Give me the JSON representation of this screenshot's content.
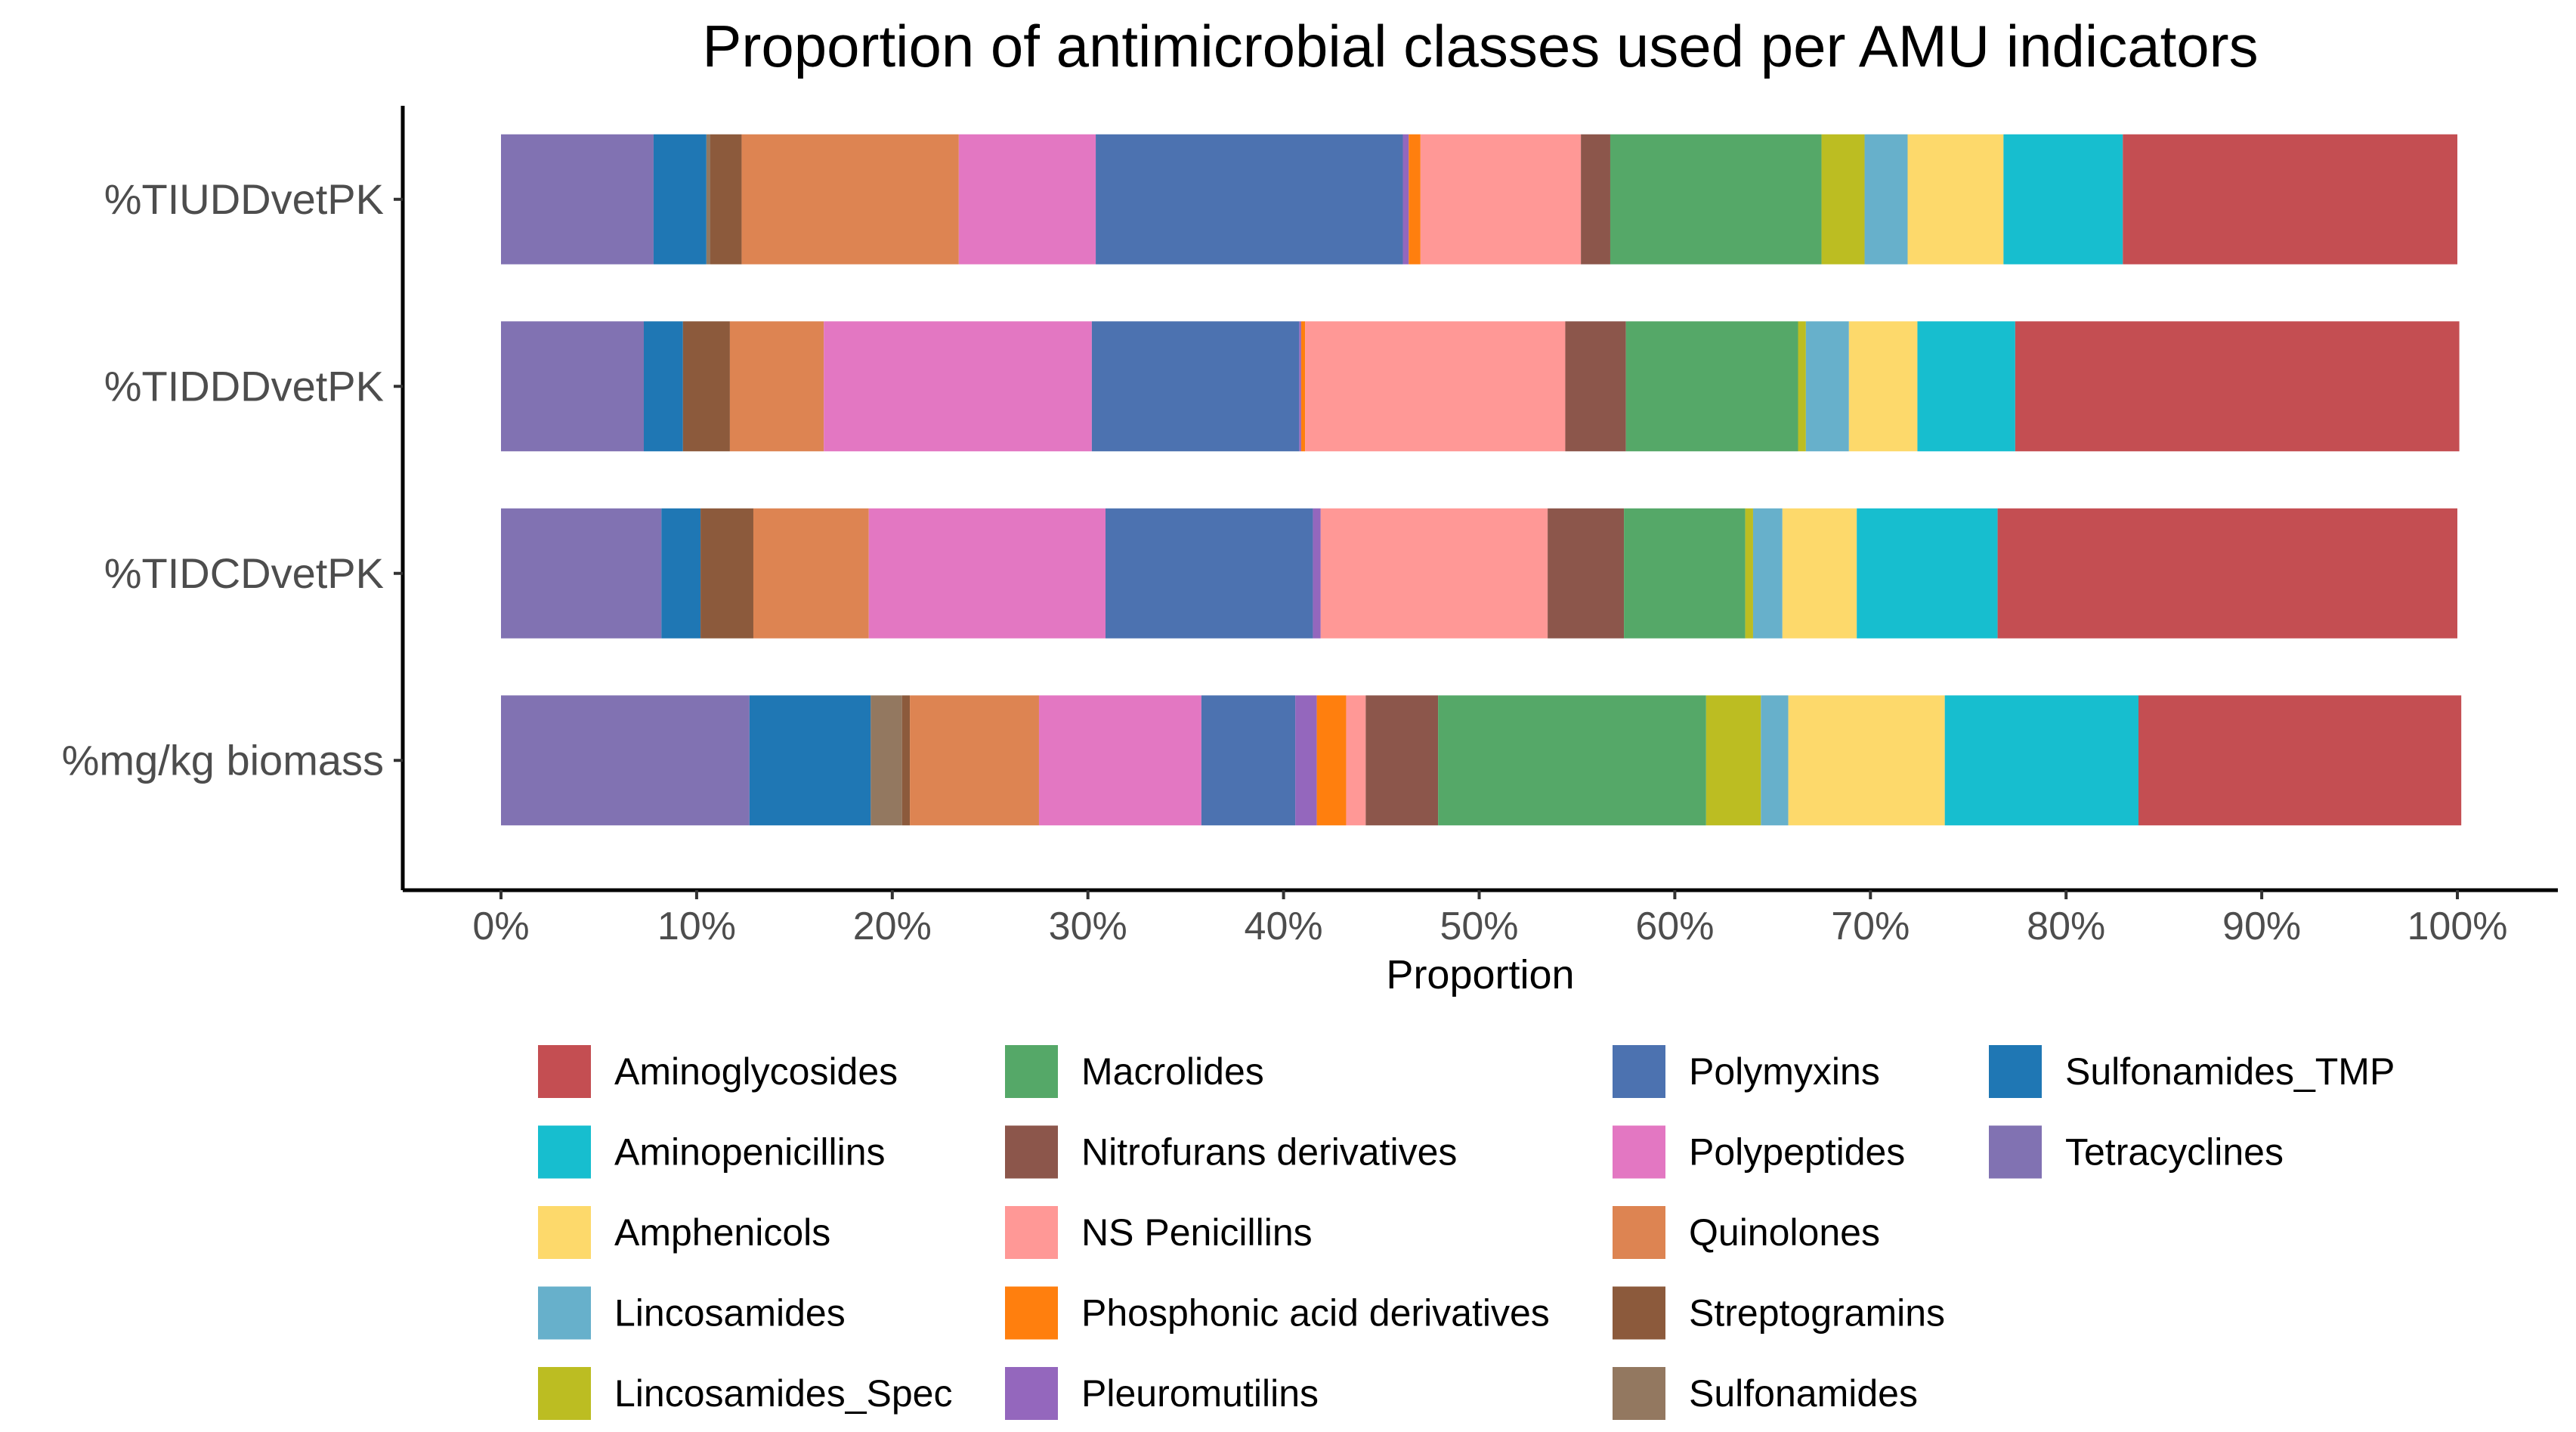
{
  "chart_data": {
    "type": "bar",
    "orientation": "horizontal",
    "stacked": true,
    "title": "Proportion of antimicrobial classes used per AMU indicators",
    "xlabel": "Proportion",
    "ylabel": "",
    "xlim": [
      0,
      1
    ],
    "x_ticks": [
      "0%",
      "10%",
      "20%",
      "30%",
      "40%",
      "50%",
      "60%",
      "70%",
      "80%",
      "90%",
      "100%"
    ],
    "grid": false,
    "legend_position": "bottom",
    "categories": [
      "%TIUDDvetPK",
      "%TIDDDvetPK",
      "%TIDCDvetPK",
      "%mg/kg biomass"
    ],
    "stack_order": [
      "Tetracyclines",
      "Sulfonamides_TMP",
      "Sulfonamides",
      "Streptogramins",
      "Quinolones",
      "Polypeptides",
      "Polymyxins",
      "Pleuromutilins",
      "Phosphonic acid derivatives",
      "NS Penicillins",
      "Nitrofurans derivatives",
      "Macrolides",
      "Lincosamides_Spec",
      "Lincosamides",
      "Amphenicols",
      "Aminopenicillins",
      "Aminoglycosides"
    ],
    "series": [
      {
        "name": "Aminoglycosides",
        "color": "#C44E52",
        "values": [
          0.171,
          0.227,
          0.235,
          0.165
        ]
      },
      {
        "name": "Aminopenicillins",
        "color": "#17BECF",
        "values": [
          0.061,
          0.05,
          0.072,
          0.099
        ]
      },
      {
        "name": "Amphenicols",
        "color": "#FDD96B",
        "values": [
          0.049,
          0.035,
          0.038,
          0.08
        ]
      },
      {
        "name": "Lincosamides",
        "color": "#67B0CB",
        "values": [
          0.022,
          0.022,
          0.015,
          0.014
        ]
      },
      {
        "name": "Lincosamides_Spec",
        "color": "#BCBD22",
        "values": [
          0.022,
          0.004,
          0.004,
          0.028
        ]
      },
      {
        "name": "Macrolides",
        "color": "#55A868",
        "values": [
          0.108,
          0.088,
          0.062,
          0.137
        ]
      },
      {
        "name": "Nitrofurans derivatives",
        "color": "#8C564B",
        "values": [
          0.015,
          0.031,
          0.039,
          0.037
        ]
      },
      {
        "name": "NS Penicillins",
        "color": "#FF9896",
        "values": [
          0.082,
          0.133,
          0.116,
          0.01
        ]
      },
      {
        "name": "Phosphonic acid derivatives",
        "color": "#FF7F0E",
        "values": [
          0.006,
          0.002,
          0.0,
          0.015
        ]
      },
      {
        "name": "Pleuromutilins",
        "color": "#9467BD",
        "values": [
          0.003,
          0.001,
          0.004,
          0.011
        ]
      },
      {
        "name": "Polymyxins",
        "color": "#4C72B0",
        "values": [
          0.157,
          0.106,
          0.106,
          0.048
        ]
      },
      {
        "name": "Polypeptides",
        "color": "#E377C2",
        "values": [
          0.07,
          0.137,
          0.121,
          0.083
        ]
      },
      {
        "name": "Quinolones",
        "color": "#DD8452",
        "values": [
          0.111,
          0.048,
          0.059,
          0.066
        ]
      },
      {
        "name": "Streptogramins",
        "color": "#8C5A3C",
        "values": [
          0.016,
          0.024,
          0.027,
          0.004
        ]
      },
      {
        "name": "Sulfonamides",
        "color": "#937860",
        "values": [
          0.002,
          0.0,
          0.0,
          0.016
        ]
      },
      {
        "name": "Sulfonamides_TMP",
        "color": "#1F77B4",
        "values": [
          0.027,
          0.02,
          0.02,
          0.062
        ]
      },
      {
        "name": "Tetracyclines",
        "color": "#8172B2",
        "values": [
          0.078,
          0.073,
          0.082,
          0.127
        ]
      }
    ],
    "legend": {
      "columns": [
        [
          "Aminoglycosides",
          "Aminopenicillins",
          "Amphenicols",
          "Lincosamides",
          "Lincosamides_Spec"
        ],
        [
          "Macrolides",
          "Nitrofurans derivatives",
          "NS Penicillins",
          "Phosphonic acid derivatives",
          "Pleuromutilins"
        ],
        [
          "Polymyxins",
          "Polypeptides",
          "Quinolones",
          "Streptogramins",
          "Sulfonamides"
        ],
        [
          "Sulfonamides_TMP",
          "Tetracyclines"
        ]
      ]
    }
  }
}
